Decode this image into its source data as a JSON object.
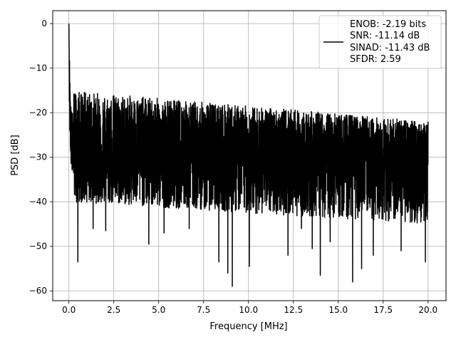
{
  "chart_data": {
    "type": "line",
    "xlabel": "Frequency [MHz]",
    "ylabel": "PSD [dB]",
    "xlim": [
      -0.9,
      21.0
    ],
    "ylim": [
      -62.2,
      2.9
    ],
    "xticks": [
      0.0,
      2.5,
      5.0,
      7.5,
      10.0,
      12.5,
      15.0,
      17.5,
      20.0
    ],
    "xtick_labels": [
      "0.0",
      "2.5",
      "5.0",
      "7.5",
      "10.0",
      "12.5",
      "15.0",
      "17.5",
      "20.0"
    ],
    "yticks": [
      0,
      -10,
      -20,
      -30,
      -40,
      -50,
      -60
    ],
    "ytick_labels": [
      "0",
      "−10",
      "−20",
      "−30",
      "−40",
      "−50",
      "−60"
    ],
    "grid": true,
    "legend_position": "top-right",
    "series": [
      {
        "color": "#000000",
        "noise_model": {
          "floor_center_db": -29,
          "peak_db": 0,
          "upper_envelope_db": [
            -15,
            -22
          ],
          "lower_envelope_db": [
            -40,
            -45
          ],
          "deep_nulls": [
            [
              0.5,
              -53.5
            ],
            [
              1.35,
              -46
            ],
            [
              2.05,
              -46.5
            ],
            [
              4.45,
              -49.5
            ],
            [
              5.3,
              -47
            ],
            [
              6.7,
              -46
            ],
            [
              8.35,
              -53.5
            ],
            [
              8.85,
              -56
            ],
            [
              9.1,
              -59
            ],
            [
              10.05,
              -54.5
            ],
            [
              12.2,
              -52
            ],
            [
              12.95,
              -46
            ],
            [
              13.55,
              -50.5
            ],
            [
              14.0,
              -56.5
            ],
            [
              14.55,
              -49
            ],
            [
              15.8,
              -58
            ],
            [
              16.3,
              -55
            ],
            [
              16.95,
              -52
            ],
            [
              18.5,
              -51
            ],
            [
              19.85,
              -53.5
            ]
          ]
        }
      }
    ],
    "legend": {
      "lines": [
        "ENOB: -2.19 bits",
        "SNR: -11.14 dB",
        "SINAD: -11.43 dB",
        "SFDR: 2.59"
      ]
    }
  }
}
